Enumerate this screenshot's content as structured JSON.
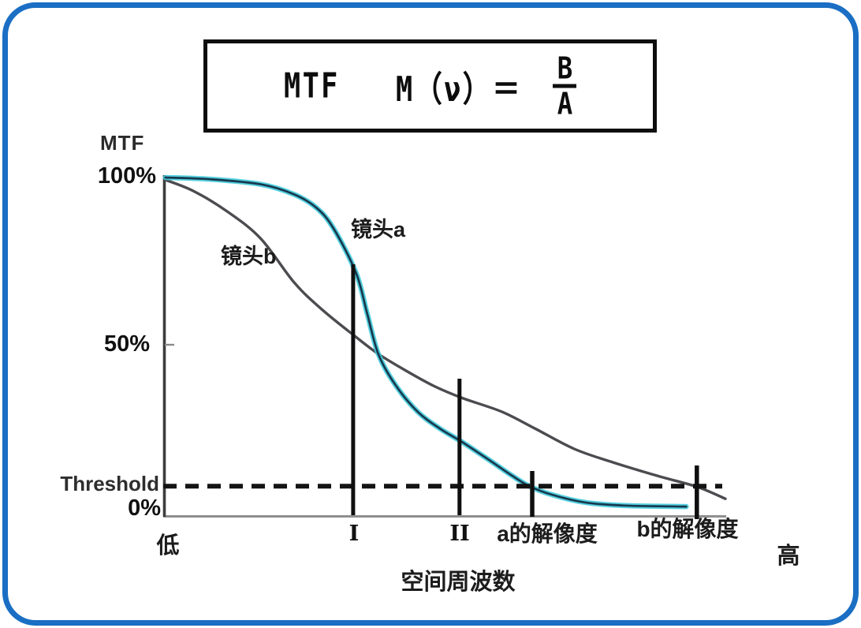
{
  "formula": {
    "label": "MTF",
    "lhs": "M（ν）＝",
    "numerator": "B",
    "denominator": "A"
  },
  "frame": {
    "border_color": "#1a6ec3"
  },
  "chart_data": {
    "type": "line",
    "ylabel": "MTF",
    "xlabel": "空间周波数",
    "x_range_labels": {
      "low": "低",
      "high": "高"
    },
    "y_ticks": [
      "100%",
      "50%",
      "0%"
    ],
    "y_tick_values_pct": [
      100,
      50,
      0
    ],
    "ylim_pct": [
      0,
      100
    ],
    "grid": false,
    "legend_position": "inline-curve-labels",
    "threshold": {
      "label": "Threshold",
      "value_pct": 9
    },
    "x_axis_note": "relative spatial frequency, 0 (低) to 100 (高)",
    "series": [
      {
        "name": "镜头a",
        "color_outer": "#3ec9da",
        "color_core": "#17384e",
        "points": [
          [
            0,
            100
          ],
          [
            8,
            99.5
          ],
          [
            17,
            98
          ],
          [
            23,
            95
          ],
          [
            27,
            91
          ],
          [
            30,
            85
          ],
          [
            34,
            72
          ],
          [
            36,
            60
          ],
          [
            38,
            48
          ],
          [
            41,
            39
          ],
          [
            45,
            31
          ],
          [
            49,
            26
          ],
          [
            53,
            22
          ],
          [
            58,
            16.5
          ],
          [
            62,
            12
          ],
          [
            65,
            9
          ],
          [
            69,
            6.5
          ],
          [
            75,
            4.2
          ],
          [
            82,
            3.3
          ],
          [
            93,
            3
          ]
        ]
      },
      {
        "name": "镜头b",
        "color": "#4c4c50",
        "points": [
          [
            0,
            99.3
          ],
          [
            5,
            96
          ],
          [
            11,
            90
          ],
          [
            17,
            82
          ],
          [
            23,
            69
          ],
          [
            28,
            61
          ],
          [
            34,
            53
          ],
          [
            38,
            48
          ],
          [
            43,
            43
          ],
          [
            48,
            38.5
          ],
          [
            53,
            35
          ],
          [
            60,
            31
          ],
          [
            66,
            26
          ],
          [
            73,
            20
          ],
          [
            80,
            16
          ],
          [
            88,
            12
          ],
          [
            95,
            8.8
          ],
          [
            100,
            5.3
          ]
        ]
      }
    ],
    "markers": [
      {
        "label": "I",
        "x": 33.5
      },
      {
        "label": "II",
        "x": 52.5
      },
      {
        "label": "a的解像度",
        "x": 65.5
      },
      {
        "label": "b的解像度",
        "x": 94.9
      }
    ],
    "crossover": {
      "x": 38,
      "mtf_pct": 48
    }
  }
}
